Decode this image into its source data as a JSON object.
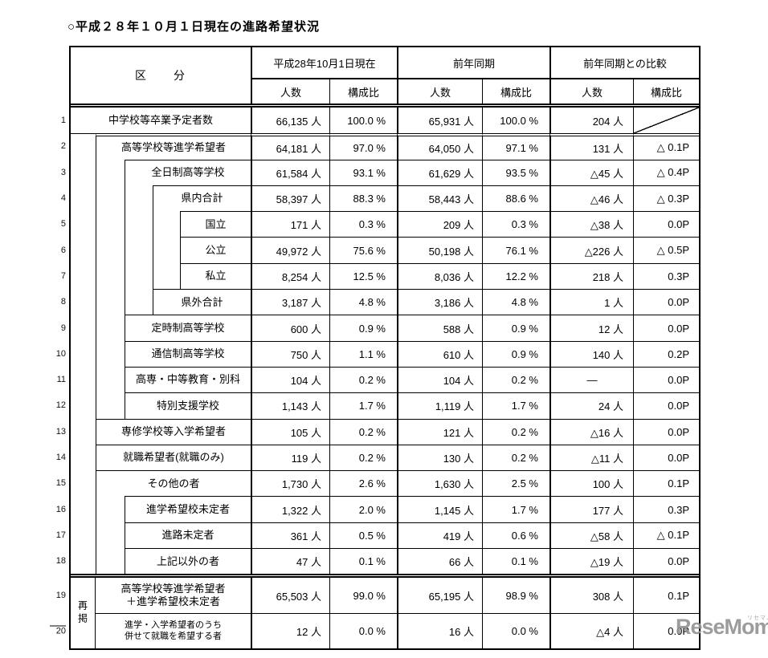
{
  "title": "○平成２８年１０月１日現在の進路希望状況",
  "header": {
    "kubun": "区　　分",
    "groups": [
      {
        "label": "平成28年10月1日現在"
      },
      {
        "label": "前年同期"
      },
      {
        "label": "前年同期との比較"
      }
    ],
    "sub": {
      "ninzu": "人数",
      "kouseihi": "構成比"
    }
  },
  "saikei_label": "再掲",
  "watermark": {
    "text": "ReseMom.",
    "ruby": "リセマム"
  },
  "rows": [
    {
      "no": "1",
      "label": "中学校等卒業予定者数",
      "indent": 0,
      "cells": [
        "66,135 人",
        "100.0 %",
        "65,931 人",
        "100.0 %",
        "204 人",
        ""
      ]
    },
    {
      "no": "2",
      "label": "高等学校等進学希望者",
      "indent": 1,
      "cells": [
        "64,181 人",
        "97.0 %",
        "64,050 人",
        "97.1 %",
        "131 人",
        "△ 0.1P"
      ]
    },
    {
      "no": "3",
      "label": "全日制高等学校",
      "indent": 2,
      "cells": [
        "61,584 人",
        "93.1 %",
        "61,629 人",
        "93.5 %",
        "△45 人",
        "△ 0.4P"
      ]
    },
    {
      "no": "4",
      "label": "県内合計",
      "indent": 3,
      "cells": [
        "58,397 人",
        "88.3 %",
        "58,443 人",
        "88.6 %",
        "△46 人",
        "△ 0.3P"
      ]
    },
    {
      "no": "5",
      "label": "国立",
      "indent": 4,
      "cells": [
        "171 人",
        "0.3 %",
        "209 人",
        "0.3 %",
        "△38 人",
        "0.0P"
      ]
    },
    {
      "no": "6",
      "label": "公立",
      "indent": 4,
      "cells": [
        "49,972 人",
        "75.6 %",
        "50,198 人",
        "76.1 %",
        "△226 人",
        "△ 0.5P"
      ]
    },
    {
      "no": "7",
      "label": "私立",
      "indent": 4,
      "cells": [
        "8,254 人",
        "12.5 %",
        "8,036 人",
        "12.2 %",
        "218 人",
        "0.3P"
      ]
    },
    {
      "no": "8",
      "label": "県外合計",
      "indent": 3,
      "cells": [
        "3,187 人",
        "4.8 %",
        "3,186 人",
        "4.8 %",
        "1 人",
        "0.0P"
      ]
    },
    {
      "no": "9",
      "label": "定時制高等学校",
      "indent": 2,
      "cells": [
        "600 人",
        "0.9 %",
        "588 人",
        "0.9 %",
        "12 人",
        "0.0P"
      ]
    },
    {
      "no": "10",
      "label": "通信制高等学校",
      "indent": 2,
      "cells": [
        "750 人",
        "1.1 %",
        "610 人",
        "0.9 %",
        "140 人",
        "0.2P"
      ]
    },
    {
      "no": "11",
      "label": "高専・中等教育・別科",
      "indent": 2,
      "cells": [
        "104 人",
        "0.2 %",
        "104 人",
        "0.2 %",
        "―",
        "0.0P"
      ]
    },
    {
      "no": "12",
      "label": "特別支援学校",
      "indent": 2,
      "cells": [
        "1,143 人",
        "1.7 %",
        "1,119 人",
        "1.7 %",
        "24 人",
        "0.0P"
      ]
    },
    {
      "no": "13",
      "label": "専修学校等入学希望者",
      "indent": 1,
      "cells": [
        "105 人",
        "0.2 %",
        "121 人",
        "0.2 %",
        "△16 人",
        "0.0P"
      ]
    },
    {
      "no": "14",
      "label": "就職希望者(就職のみ)",
      "indent": 1,
      "cells": [
        "119 人",
        "0.2 %",
        "130 人",
        "0.2 %",
        "△11 人",
        "0.0P"
      ]
    },
    {
      "no": "15",
      "label": "その他の者",
      "indent": 1,
      "cells": [
        "1,730 人",
        "2.6 %",
        "1,630 人",
        "2.5 %",
        "100 人",
        "0.1P"
      ]
    },
    {
      "no": "16",
      "label": "進学希望校未定者",
      "indent": 2,
      "cells": [
        "1,322 人",
        "2.0 %",
        "1,145 人",
        "1.7 %",
        "177 人",
        "0.3P"
      ]
    },
    {
      "no": "17",
      "label": "進路未定者",
      "indent": 2,
      "cells": [
        "361 人",
        "0.5 %",
        "419 人",
        "0.6 %",
        "△58 人",
        "△ 0.1P"
      ]
    },
    {
      "no": "18",
      "label": "上記以外の者",
      "indent": 2,
      "cells": [
        "47 人",
        "0.1 %",
        "66 人",
        "0.1 %",
        "△19 人",
        "0.0P"
      ]
    },
    {
      "no": "19",
      "label": "高等学校等進学希望者\n＋進学希望校未定者",
      "section": "saikei",
      "cells": [
        "65,503 人",
        "99.0 %",
        "65,195 人",
        "98.9 %",
        "308 人",
        "0.1P"
      ]
    },
    {
      "no": "20",
      "label": "進学・入学希望者のうち\n併せて就職を希望する者",
      "section": "saikei",
      "small": true,
      "cells": [
        "12 人",
        "0.0 %",
        "16 人",
        "0.0 %",
        "△4 人",
        "0.0P"
      ]
    }
  ]
}
